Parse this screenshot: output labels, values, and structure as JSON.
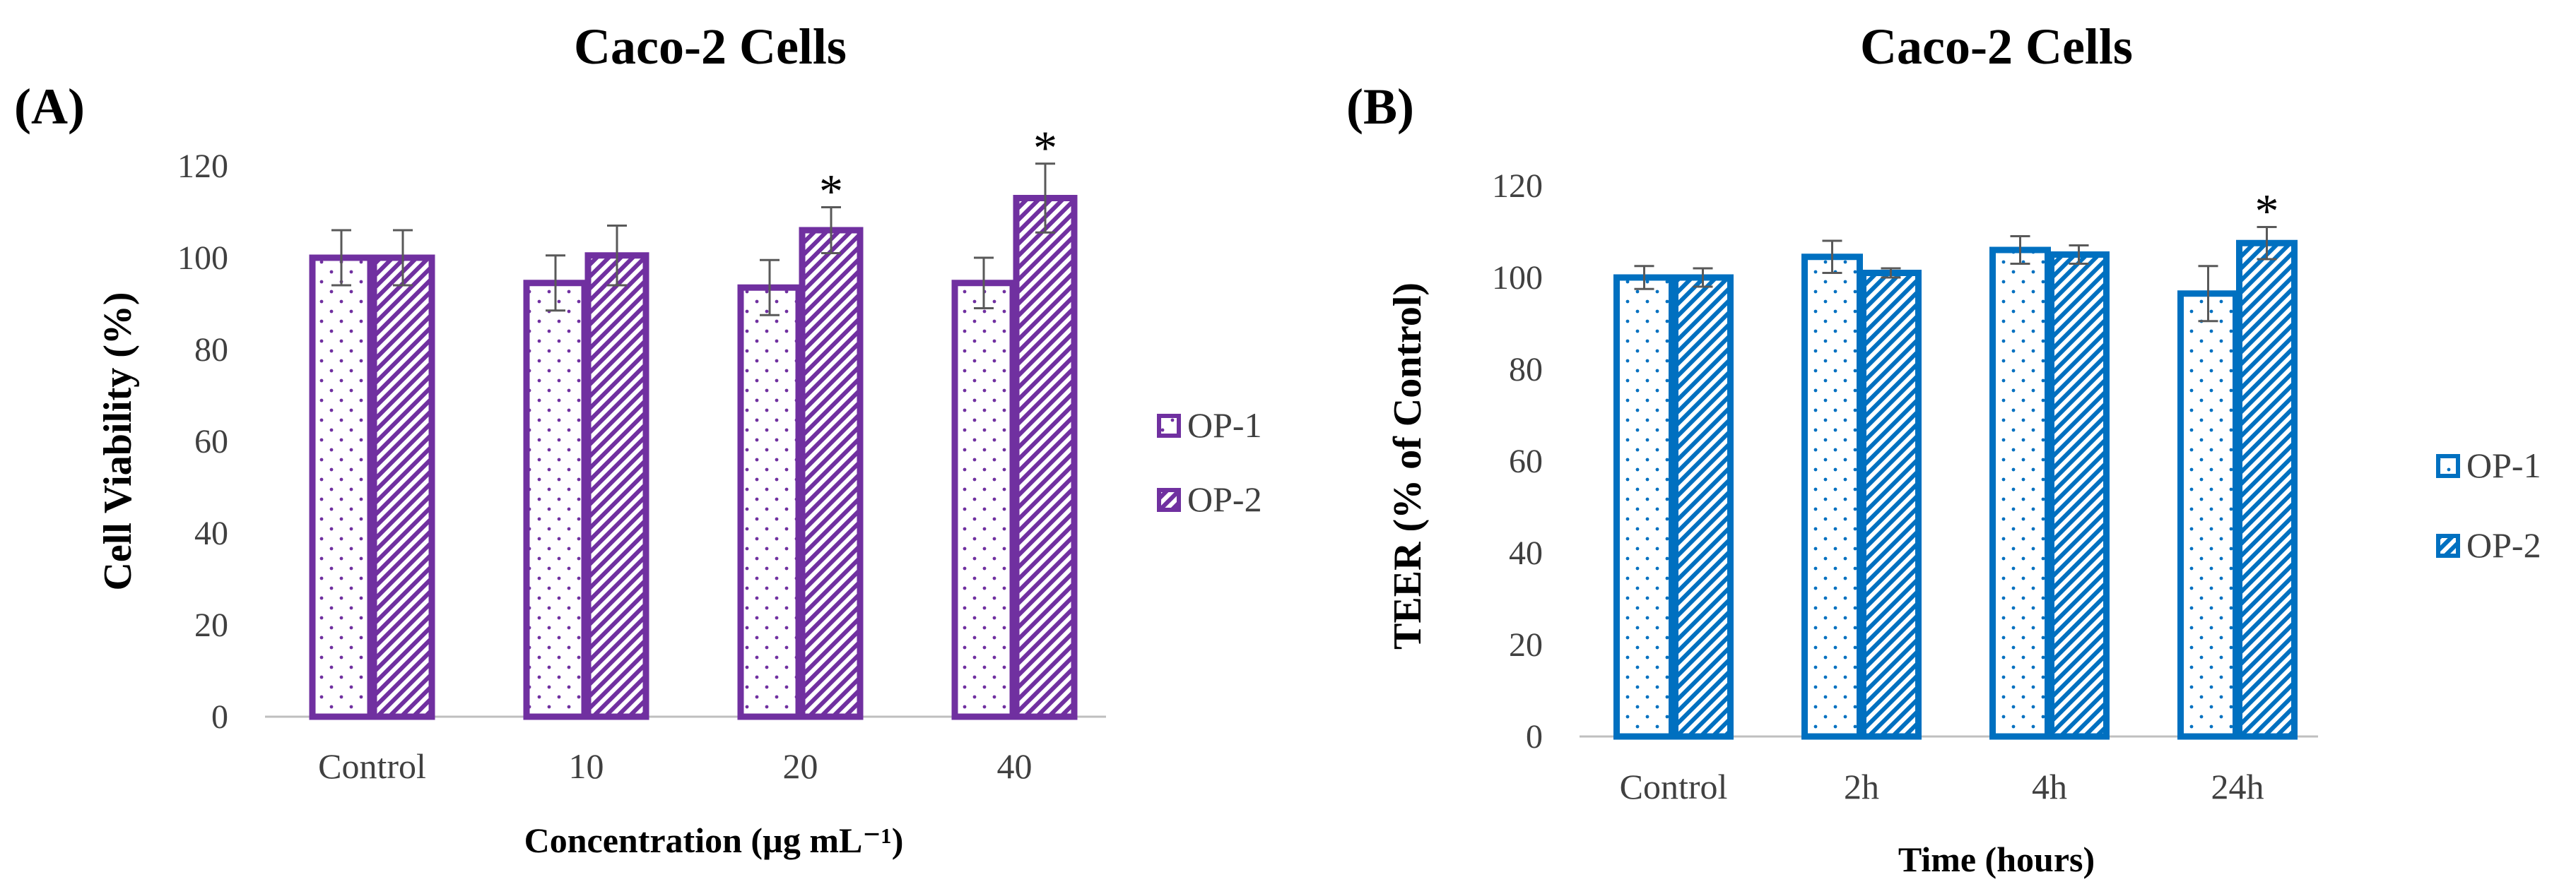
{
  "chart_data": [
    {
      "panel_label": "(A)",
      "type": "bar",
      "title": "Caco-2 Cells",
      "xlabel": "Concentration (µg mL⁻¹)",
      "ylabel": "Cell Viability (%)",
      "ylim": [
        0,
        120
      ],
      "yticks": [
        "0",
        "20",
        "40",
        "60",
        "80",
        "100",
        "120"
      ],
      "categories": [
        "Control",
        "10",
        "20",
        "40"
      ],
      "color": "#7030A0",
      "legend_placement": "right",
      "series": [
        {
          "name": "OP-1",
          "pattern": "dots",
          "values": [
            100,
            94.5,
            93.5,
            94.5
          ],
          "errors": [
            6,
            6,
            6,
            5.5
          ]
        },
        {
          "name": "OP-2",
          "pattern": "diagonal",
          "values": [
            100,
            100.5,
            106,
            113
          ],
          "errors": [
            6,
            6.5,
            5,
            7.5
          ]
        }
      ],
      "annotations": [
        {
          "text": "*",
          "category": "20",
          "series": "OP-2"
        },
        {
          "text": "*",
          "category": "40",
          "series": "OP-2"
        }
      ]
    },
    {
      "panel_label": "(B)",
      "type": "bar",
      "title": "Caco-2 Cells",
      "xlabel": "Time (hours)",
      "ylabel": "TEER (% of Control)",
      "ylim": [
        0,
        120
      ],
      "yticks": [
        "0",
        "20",
        "40",
        "60",
        "80",
        "100",
        "120"
      ],
      "categories": [
        "Control",
        "2h",
        "4h",
        "24h"
      ],
      "color": "#0070C0",
      "legend_placement": "right",
      "series": [
        {
          "name": "OP-1",
          "pattern": "dots",
          "values": [
            100,
            104.5,
            106,
            96.5
          ],
          "errors": [
            2.5,
            3.5,
            3,
            6
          ]
        },
        {
          "name": "OP-2",
          "pattern": "diagonal",
          "values": [
            100,
            101,
            105,
            107.5
          ],
          "errors": [
            2,
            1,
            2,
            3.5
          ]
        }
      ],
      "annotations": [
        {
          "text": "*",
          "category": "24h",
          "series": "OP-2"
        }
      ]
    }
  ]
}
